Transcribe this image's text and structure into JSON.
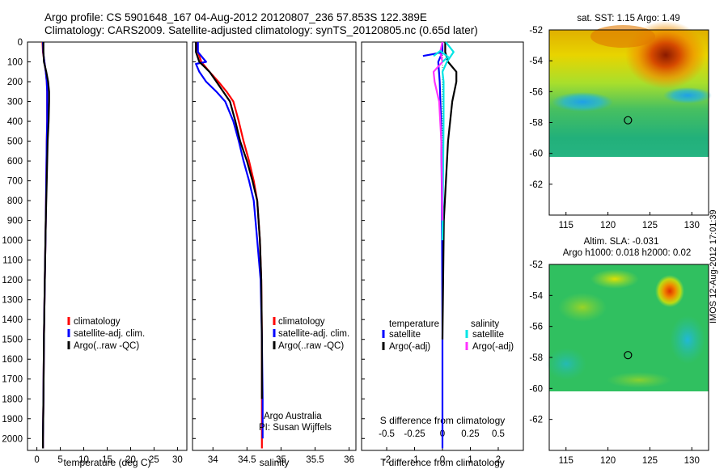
{
  "header": {
    "line1": "Argo profile: CS 5901648_167 04-Aug-2012 20120807_236 57.853S 122.389E",
    "line2": "Climatology: CARS2009. Satellite-adjusted climatology: synTS_20120805.nc (0.65d later)"
  },
  "side_stamp": "IMOS 12-Aug-2012 17:01:39",
  "colors": {
    "climatology": "#ff0000",
    "satellite_adj": "#0000ff",
    "argo": "#000000",
    "salinity_satellite": "#00e5e5",
    "salinity_argo": "#ff33ff"
  },
  "chart_data": [
    {
      "type": "line",
      "id": "temperature",
      "xlabel": "temperature (deg C)",
      "ylabel": "",
      "xlim": [
        -2,
        32
      ],
      "ylim": [
        2060,
        0
      ],
      "xticks": [
        0,
        5,
        10,
        15,
        20,
        25,
        30
      ],
      "yticks": [
        0,
        100,
        200,
        300,
        400,
        500,
        600,
        700,
        800,
        900,
        1000,
        1100,
        1200,
        1300,
        1400,
        1500,
        1600,
        1700,
        1800,
        1900,
        2000
      ],
      "legend": [
        "climatology",
        "satellite-adj. clim.",
        "Argo(..raw -QC)"
      ],
      "series": [
        {
          "name": "climatology",
          "x": [
            1.2,
            1.3,
            1.6,
            1.9,
            2.1,
            2.2,
            2.2,
            2.2,
            2.1,
            2.0,
            1.9,
            1.7,
            1.5,
            1.4,
            1.3,
            1.3
          ],
          "y": [
            0,
            50,
            100,
            150,
            200,
            250,
            300,
            400,
            500,
            700,
            900,
            1200,
            1500,
            1800,
            2000,
            2050
          ]
        },
        {
          "name": "satellite-adj. clim.",
          "x": [
            1.3,
            1.35,
            1.6,
            1.9,
            2.1,
            2.2,
            2.2,
            2.2,
            2.1,
            2.0,
            1.9,
            1.7,
            1.5,
            1.4,
            1.3,
            1.3
          ],
          "y": [
            0,
            50,
            100,
            150,
            200,
            250,
            300,
            400,
            500,
            700,
            900,
            1200,
            1500,
            1800,
            2000,
            2050
          ]
        },
        {
          "name": "Argo(..raw -QC)",
          "x": [
            1.4,
            1.4,
            1.5,
            2.0,
            2.4,
            2.6,
            2.6,
            2.5,
            2.3,
            2.1,
            1.9,
            1.7,
            1.5,
            1.4,
            1.3,
            1.3
          ],
          "y": [
            0,
            50,
            100,
            150,
            200,
            250,
            300,
            400,
            500,
            700,
            900,
            1200,
            1500,
            1800,
            2000,
            2050
          ]
        }
      ]
    },
    {
      "type": "line",
      "id": "salinity",
      "xlabel": "salinity",
      "ylabel": "",
      "xlim": [
        33.7,
        36.1
      ],
      "ylim": [
        2060,
        0
      ],
      "xticks": [
        34,
        34.5,
        35,
        35.5,
        36
      ],
      "xtick_labels": [
        "34",
        "34.5",
        "35",
        "35.5",
        "36"
      ],
      "legend": [
        "climatology",
        "satellite-adj. clim.",
        "Argo(..raw -QC)"
      ],
      "annotations": [
        "Argo Australia",
        "PI: Susan Wijffels"
      ],
      "series": [
        {
          "name": "climatology",
          "x": [
            33.75,
            33.78,
            33.83,
            33.95,
            34.08,
            34.2,
            34.3,
            34.38,
            34.45,
            34.53,
            34.6,
            34.65,
            34.69,
            34.71,
            34.72,
            34.72,
            34.72
          ],
          "y": [
            0,
            50,
            100,
            150,
            200,
            250,
            300,
            400,
            500,
            600,
            700,
            800,
            1000,
            1200,
            1500,
            1800,
            2050
          ]
        },
        {
          "name": "satellite-adj. clim.",
          "x": [
            33.78,
            33.78,
            33.9,
            33.75,
            33.8,
            33.9,
            34.05,
            34.18,
            34.3,
            34.38,
            34.45,
            34.53,
            34.6,
            34.65,
            34.7,
            34.72,
            34.73,
            34.73
          ],
          "y": [
            0,
            50,
            100,
            110,
            150,
            200,
            250,
            300,
            400,
            500,
            600,
            700,
            800,
            1000,
            1200,
            1500,
            1800,
            2000
          ]
        },
        {
          "name": "Argo(..raw -QC)",
          "x": [
            33.75,
            33.75,
            33.8,
            33.95,
            34.05,
            34.15,
            34.25,
            34.33,
            34.4,
            34.5,
            34.58,
            34.65,
            34.69,
            34.71,
            34.72,
            34.72
          ],
          "y": [
            0,
            50,
            100,
            150,
            200,
            250,
            300,
            400,
            500,
            600,
            700,
            800,
            1000,
            1200,
            1500,
            1800
          ]
        }
      ]
    },
    {
      "type": "line",
      "id": "difference",
      "xlabel": "T difference from climatology",
      "xlabel_top": "S difference from climatology",
      "xlim": [
        -2.9,
        2.9
      ],
      "ylim": [
        2060,
        0
      ],
      "xticks": [
        -2,
        -1,
        0,
        1,
        2
      ],
      "xticks_top": [
        -0.5,
        -0.25,
        0,
        0.25,
        0.5
      ],
      "xtick_labels_top": [
        "-0.5",
        "-0.25",
        "0",
        "0.25",
        "0.5"
      ],
      "legend_temperature_title": "temperature",
      "legend_salinity_title": "salinity",
      "legend": [
        "satellite",
        "Argo(-adj)",
        "satellite",
        "Argo(-adj)"
      ],
      "series": [
        {
          "name": "satellite",
          "group": "temperature",
          "x": [
            0.0,
            0.0,
            -0.15,
            -0.1,
            -0.05,
            -0.02,
            0.0,
            0.0
          ],
          "y": [
            0,
            50,
            100,
            200,
            400,
            800,
            1500,
            2050
          ]
        },
        {
          "name": "Argo(-adj)",
          "group": "temperature",
          "x": [
            0.1,
            0.1,
            0.2,
            0.5,
            0.5,
            0.35,
            0.2,
            0.05,
            0.0
          ],
          "y": [
            0,
            50,
            100,
            150,
            200,
            300,
            500,
            900,
            1500
          ]
        },
        {
          "name": "satellite",
          "group": "salinity",
          "x": [
            0.03,
            0.1,
            0.04,
            0.0,
            0.01,
            0.01,
            0.0
          ],
          "y": [
            0,
            50,
            100,
            150,
            200,
            400,
            1000
          ]
        },
        {
          "name": "Argo(-adj)",
          "group": "salinity",
          "x": [
            0.0,
            -0.02,
            0.0,
            -0.08,
            -0.07,
            -0.03,
            -0.01,
            0.0
          ],
          "y": [
            0,
            50,
            100,
            150,
            200,
            300,
            500,
            900
          ]
        },
        {
          "name": "temperature",
          "group": "temperature",
          "x": [
            -0.7,
            -0.3,
            0.0
          ],
          "y": [
            70,
            60,
            50
          ]
        },
        {
          "name": "salinity",
          "group": "salinity",
          "x": [
            -0.08,
            -0.02,
            0.05,
            0.0
          ],
          "y": [
            70,
            45,
            75,
            100
          ]
        }
      ]
    },
    {
      "type": "heatmap",
      "id": "sst_map",
      "title": "sat. SST: 1.15 Argo: 1.49",
      "xlim": [
        113,
        132
      ],
      "ylim": [
        -64,
        -52
      ],
      "xticks": [
        115,
        120,
        125,
        130
      ],
      "yticks": [
        -52,
        -54,
        -56,
        -58,
        -60,
        -62
      ],
      "marker": {
        "lon": 122.389,
        "lat": -57.853
      }
    },
    {
      "type": "heatmap",
      "id": "sla_map",
      "title": "Altim. SLA: -0.031",
      "subtitle": "Argo h1000: 0.018 h2000: 0.02",
      "xlim": [
        113,
        132
      ],
      "ylim": [
        -64,
        -52
      ],
      "xticks": [
        115,
        120,
        125,
        130
      ],
      "yticks": [
        -52,
        -54,
        -56,
        -58,
        -60,
        -62
      ],
      "marker": {
        "lon": 122.389,
        "lat": -57.853
      }
    }
  ]
}
